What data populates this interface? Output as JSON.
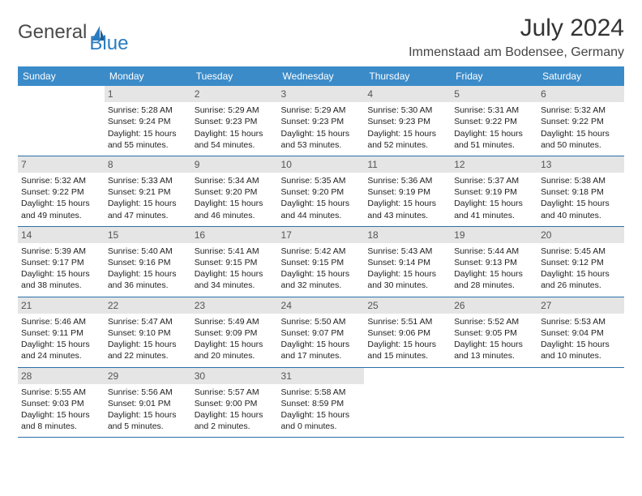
{
  "brand": {
    "part1": "General",
    "part2": "Blue"
  },
  "title": "July 2024",
  "location": "Immenstaad am Bodensee, Germany",
  "colors": {
    "header_bg": "#3b8bc9",
    "header_text": "#ffffff",
    "daynum_bg": "#e5e5e5",
    "rule": "#2b6fa8",
    "brand_gray": "#4a4a4a",
    "brand_blue": "#2b7bbf"
  },
  "day_headers": [
    "Sunday",
    "Monday",
    "Tuesday",
    "Wednesday",
    "Thursday",
    "Friday",
    "Saturday"
  ],
  "weeks": [
    [
      {
        "n": "",
        "sr": "",
        "ss": "",
        "dl": ""
      },
      {
        "n": "1",
        "sr": "Sunrise: 5:28 AM",
        "ss": "Sunset: 9:24 PM",
        "dl": "Daylight: 15 hours and 55 minutes."
      },
      {
        "n": "2",
        "sr": "Sunrise: 5:29 AM",
        "ss": "Sunset: 9:23 PM",
        "dl": "Daylight: 15 hours and 54 minutes."
      },
      {
        "n": "3",
        "sr": "Sunrise: 5:29 AM",
        "ss": "Sunset: 9:23 PM",
        "dl": "Daylight: 15 hours and 53 minutes."
      },
      {
        "n": "4",
        "sr": "Sunrise: 5:30 AM",
        "ss": "Sunset: 9:23 PM",
        "dl": "Daylight: 15 hours and 52 minutes."
      },
      {
        "n": "5",
        "sr": "Sunrise: 5:31 AM",
        "ss": "Sunset: 9:22 PM",
        "dl": "Daylight: 15 hours and 51 minutes."
      },
      {
        "n": "6",
        "sr": "Sunrise: 5:32 AM",
        "ss": "Sunset: 9:22 PM",
        "dl": "Daylight: 15 hours and 50 minutes."
      }
    ],
    [
      {
        "n": "7",
        "sr": "Sunrise: 5:32 AM",
        "ss": "Sunset: 9:22 PM",
        "dl": "Daylight: 15 hours and 49 minutes."
      },
      {
        "n": "8",
        "sr": "Sunrise: 5:33 AM",
        "ss": "Sunset: 9:21 PM",
        "dl": "Daylight: 15 hours and 47 minutes."
      },
      {
        "n": "9",
        "sr": "Sunrise: 5:34 AM",
        "ss": "Sunset: 9:20 PM",
        "dl": "Daylight: 15 hours and 46 minutes."
      },
      {
        "n": "10",
        "sr": "Sunrise: 5:35 AM",
        "ss": "Sunset: 9:20 PM",
        "dl": "Daylight: 15 hours and 44 minutes."
      },
      {
        "n": "11",
        "sr": "Sunrise: 5:36 AM",
        "ss": "Sunset: 9:19 PM",
        "dl": "Daylight: 15 hours and 43 minutes."
      },
      {
        "n": "12",
        "sr": "Sunrise: 5:37 AM",
        "ss": "Sunset: 9:19 PM",
        "dl": "Daylight: 15 hours and 41 minutes."
      },
      {
        "n": "13",
        "sr": "Sunrise: 5:38 AM",
        "ss": "Sunset: 9:18 PM",
        "dl": "Daylight: 15 hours and 40 minutes."
      }
    ],
    [
      {
        "n": "14",
        "sr": "Sunrise: 5:39 AM",
        "ss": "Sunset: 9:17 PM",
        "dl": "Daylight: 15 hours and 38 minutes."
      },
      {
        "n": "15",
        "sr": "Sunrise: 5:40 AM",
        "ss": "Sunset: 9:16 PM",
        "dl": "Daylight: 15 hours and 36 minutes."
      },
      {
        "n": "16",
        "sr": "Sunrise: 5:41 AM",
        "ss": "Sunset: 9:15 PM",
        "dl": "Daylight: 15 hours and 34 minutes."
      },
      {
        "n": "17",
        "sr": "Sunrise: 5:42 AM",
        "ss": "Sunset: 9:15 PM",
        "dl": "Daylight: 15 hours and 32 minutes."
      },
      {
        "n": "18",
        "sr": "Sunrise: 5:43 AM",
        "ss": "Sunset: 9:14 PM",
        "dl": "Daylight: 15 hours and 30 minutes."
      },
      {
        "n": "19",
        "sr": "Sunrise: 5:44 AM",
        "ss": "Sunset: 9:13 PM",
        "dl": "Daylight: 15 hours and 28 minutes."
      },
      {
        "n": "20",
        "sr": "Sunrise: 5:45 AM",
        "ss": "Sunset: 9:12 PM",
        "dl": "Daylight: 15 hours and 26 minutes."
      }
    ],
    [
      {
        "n": "21",
        "sr": "Sunrise: 5:46 AM",
        "ss": "Sunset: 9:11 PM",
        "dl": "Daylight: 15 hours and 24 minutes."
      },
      {
        "n": "22",
        "sr": "Sunrise: 5:47 AM",
        "ss": "Sunset: 9:10 PM",
        "dl": "Daylight: 15 hours and 22 minutes."
      },
      {
        "n": "23",
        "sr": "Sunrise: 5:49 AM",
        "ss": "Sunset: 9:09 PM",
        "dl": "Daylight: 15 hours and 20 minutes."
      },
      {
        "n": "24",
        "sr": "Sunrise: 5:50 AM",
        "ss": "Sunset: 9:07 PM",
        "dl": "Daylight: 15 hours and 17 minutes."
      },
      {
        "n": "25",
        "sr": "Sunrise: 5:51 AM",
        "ss": "Sunset: 9:06 PM",
        "dl": "Daylight: 15 hours and 15 minutes."
      },
      {
        "n": "26",
        "sr": "Sunrise: 5:52 AM",
        "ss": "Sunset: 9:05 PM",
        "dl": "Daylight: 15 hours and 13 minutes."
      },
      {
        "n": "27",
        "sr": "Sunrise: 5:53 AM",
        "ss": "Sunset: 9:04 PM",
        "dl": "Daylight: 15 hours and 10 minutes."
      }
    ],
    [
      {
        "n": "28",
        "sr": "Sunrise: 5:55 AM",
        "ss": "Sunset: 9:03 PM",
        "dl": "Daylight: 15 hours and 8 minutes."
      },
      {
        "n": "29",
        "sr": "Sunrise: 5:56 AM",
        "ss": "Sunset: 9:01 PM",
        "dl": "Daylight: 15 hours and 5 minutes."
      },
      {
        "n": "30",
        "sr": "Sunrise: 5:57 AM",
        "ss": "Sunset: 9:00 PM",
        "dl": "Daylight: 15 hours and 2 minutes."
      },
      {
        "n": "31",
        "sr": "Sunrise: 5:58 AM",
        "ss": "Sunset: 8:59 PM",
        "dl": "Daylight: 15 hours and 0 minutes."
      },
      {
        "n": "",
        "sr": "",
        "ss": "",
        "dl": ""
      },
      {
        "n": "",
        "sr": "",
        "ss": "",
        "dl": ""
      },
      {
        "n": "",
        "sr": "",
        "ss": "",
        "dl": ""
      }
    ]
  ]
}
